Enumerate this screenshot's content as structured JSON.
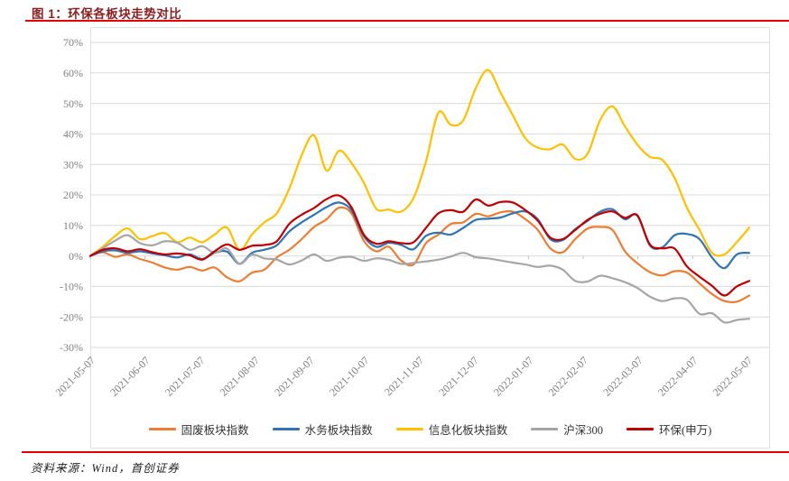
{
  "figure": {
    "title": "图 1：环保各板块走势对比",
    "source": "资料来源：Wind，首创证券",
    "title_color": "#8b2020",
    "rule_color": "#e60000",
    "box_border_color": "#e2e2e2",
    "grid_color": "#d9d9d9",
    "axis_label_color": "#7f7f7f"
  },
  "chart_data": {
    "type": "line",
    "title": "环保各板块走势对比",
    "xlabel": "",
    "ylabel": "",
    "ylim": [
      -30,
      70
    ],
    "grid": true,
    "legend_position": "bottom",
    "y_tick_labels": [
      "70%",
      "60%",
      "50%",
      "40%",
      "30%",
      "20%",
      "10%",
      "0%",
      "-10%",
      "-20%",
      "-30%"
    ],
    "x_tick_labels": [
      "2021-05-07",
      "2021-06-07",
      "2021-07-07",
      "2021-08-07",
      "2021-09-07",
      "2021-10-07",
      "2021-11-07",
      "2021-12-07",
      "2022-01-07",
      "2022-02-07",
      "2022-03-07",
      "2022-04-07",
      "2022-05-07"
    ],
    "x": [
      "2021-05-07",
      "2021-05-14",
      "2021-05-21",
      "2021-05-28",
      "2021-06-04",
      "2021-06-11",
      "2021-06-18",
      "2021-06-25",
      "2021-07-02",
      "2021-07-09",
      "2021-07-16",
      "2021-07-23",
      "2021-07-30",
      "2021-08-06",
      "2021-08-13",
      "2021-08-20",
      "2021-08-27",
      "2021-09-03",
      "2021-09-10",
      "2021-09-17",
      "2021-09-24",
      "2021-10-01",
      "2021-10-08",
      "2021-10-15",
      "2021-10-22",
      "2021-10-29",
      "2021-11-05",
      "2021-11-12",
      "2021-11-19",
      "2021-11-26",
      "2021-12-03",
      "2021-12-10",
      "2021-12-17",
      "2021-12-24",
      "2021-12-31",
      "2022-01-07",
      "2022-01-14",
      "2022-01-21",
      "2022-01-28",
      "2022-02-04",
      "2022-02-11",
      "2022-02-18",
      "2022-02-25",
      "2022-03-04",
      "2022-03-11",
      "2022-03-18",
      "2022-03-25",
      "2022-04-01",
      "2022-04-08",
      "2022-04-15",
      "2022-04-22",
      "2022-04-29",
      "2022-05-06",
      "2022-05-13"
    ],
    "unit": "percent",
    "series": [
      {
        "name": "固废板块指数",
        "color": "#ED7D31",
        "values": [
          0,
          1.2,
          -0.3,
          0.5,
          -1,
          -2.2,
          -3.8,
          -4.5,
          -3.6,
          -4.8,
          -3.8,
          -7,
          -8.3,
          -5.5,
          -4.5,
          -0.5,
          2,
          5.5,
          9.5,
          12,
          15.8,
          14,
          5,
          1.5,
          3,
          -1.5,
          -2.8,
          4.2,
          7,
          10.5,
          11,
          13.8,
          13,
          14.3,
          14.5,
          12,
          8.5,
          2.5,
          1.2,
          5.5,
          9,
          9.5,
          8.5,
          1.5,
          -2.4,
          -5.3,
          -6.4,
          -5,
          -5.5,
          -9,
          -12.5,
          -14.8,
          -15,
          -13
        ]
      },
      {
        "name": "水务板块指数",
        "color": "#2E75B6",
        "values": [
          0,
          1.5,
          1.8,
          1,
          1.5,
          0.8,
          0.2,
          -0.5,
          0.5,
          -1,
          1,
          1.4,
          -2.6,
          1,
          2,
          3.5,
          8,
          11,
          13.5,
          16,
          17.5,
          15,
          6.5,
          3,
          4.3,
          3.6,
          2.2,
          6.6,
          7.6,
          7,
          9.2,
          11.8,
          12.2,
          12.6,
          14,
          14.6,
          12,
          5.5,
          5.2,
          8.8,
          11.5,
          14.5,
          15.3,
          12,
          13.4,
          3.5,
          2.8,
          6.8,
          7.2,
          5.5,
          -0.5,
          -4,
          0.5,
          1
        ]
      },
      {
        "name": "信息化板块指数",
        "color": "#FFC000",
        "values": [
          0,
          3,
          6.5,
          9,
          5.5,
          6.5,
          7.5,
          4.5,
          6,
          4.5,
          7,
          9.3,
          2,
          7,
          11,
          14,
          22,
          33,
          39.5,
          28,
          34.5,
          30.5,
          24,
          15.5,
          15.2,
          14.5,
          19,
          31,
          47,
          43,
          44.5,
          55,
          61,
          53.5,
          46,
          38.5,
          35.5,
          35,
          36.5,
          31.8,
          33.5,
          44.5,
          49,
          42.5,
          36.5,
          32.5,
          31.5,
          25.5,
          15.7,
          8.5,
          1,
          0.5,
          4.5,
          9.3
        ]
      },
      {
        "name": "沪深300",
        "color": "#A6A6A6",
        "values": [
          0,
          2.5,
          5,
          6.8,
          4.2,
          3.5,
          4.8,
          4.3,
          2,
          3.2,
          1,
          2.4,
          -2.6,
          0.4,
          -0.8,
          -1.2,
          -2.8,
          -1.5,
          0.5,
          -1.6,
          -0.6,
          -0.3,
          -1.6,
          -0.8,
          -1.3,
          -2.6,
          -2.3,
          -1.8,
          -1.2,
          -0.2,
          1.0,
          -0.4,
          -0.8,
          -1.5,
          -2.2,
          -2.8,
          -3.6,
          -3.2,
          -4.5,
          -8.2,
          -8.4,
          -6.5,
          -7.3,
          -8.6,
          -10.5,
          -13.3,
          -14.8,
          -13.9,
          -14.4,
          -19,
          -18.8,
          -21.8,
          -21,
          -20.6
        ]
      },
      {
        "name": "环保(申万)",
        "color": "#C00000",
        "values": [
          0,
          2,
          2.5,
          1.5,
          2.2,
          1.2,
          0.5,
          0.8,
          0.2,
          -1.2,
          1.5,
          3.8,
          2,
          3.3,
          3.6,
          4.8,
          10.5,
          13.5,
          15.7,
          18.6,
          19.8,
          16,
          7,
          4,
          4.8,
          4.2,
          4.5,
          9.2,
          14,
          15,
          14.5,
          18.5,
          16.5,
          17.7,
          17.5,
          15,
          11.5,
          6,
          5.5,
          8.5,
          11.8,
          13.8,
          14.6,
          12.5,
          13.2,
          3.8,
          2.5,
          2.4,
          -3.5,
          -6.8,
          -9.8,
          -13,
          -10,
          -8.2
        ]
      }
    ]
  }
}
